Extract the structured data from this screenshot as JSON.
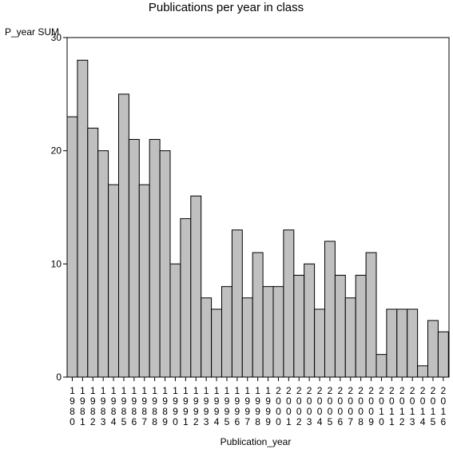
{
  "chart_data": {
    "type": "bar",
    "title": "Publications per year in class",
    "ylabel": "P_year SUM",
    "xlabel": "Publication_year",
    "ylim": [
      0,
      30
    ],
    "yticks": [
      "0",
      "10",
      "20",
      "30"
    ],
    "grid": false,
    "categories": [
      "1980",
      "1981",
      "1982",
      "1983",
      "1984",
      "1985",
      "1986",
      "1987",
      "1988",
      "1989",
      "1990",
      "1991",
      "1992",
      "1993",
      "1994",
      "1995",
      "1996",
      "1997",
      "1998",
      "1999",
      "2000",
      "2001",
      "2002",
      "2003",
      "2004",
      "2005",
      "2006",
      "2007",
      "2008",
      "2009",
      "2010",
      "2011",
      "2012",
      "2013",
      "2014",
      "2015",
      "2016"
    ],
    "values": [
      23,
      28,
      22,
      20,
      17,
      25,
      21,
      17,
      21,
      20,
      10,
      14,
      16,
      7,
      6,
      8,
      13,
      7,
      11,
      8,
      8,
      13,
      9,
      10,
      6,
      12,
      9,
      7,
      9,
      11,
      2,
      6,
      6,
      6,
      1,
      5,
      4
    ],
    "bar_color": "#c0c0c0"
  }
}
